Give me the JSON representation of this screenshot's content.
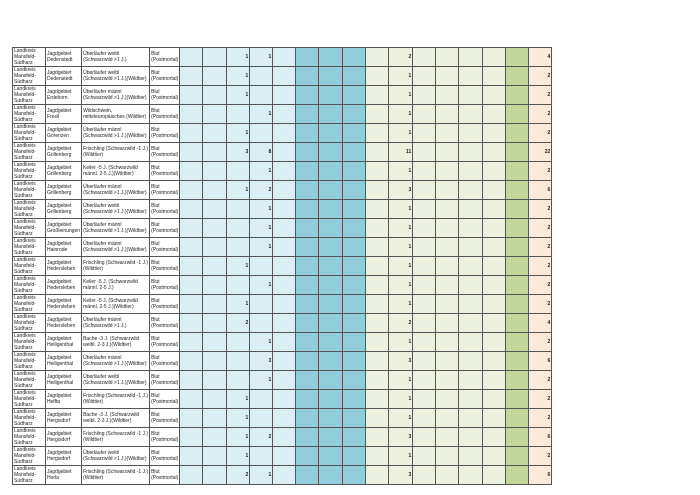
{
  "columns_colors": {
    "light_blue": "#dbeef4",
    "dark_blue": "#92cddc",
    "light_green": "#ebf1de",
    "green": "#c4d79b",
    "peach": "#fde9d9"
  },
  "rows": [
    {
      "district": "Landkreis Mansfeld-Südharz",
      "area": "Jagdgebiet Dedenstedt",
      "species": "Überläufer weibl (Schwarzwild >1 J.)",
      "sample": "Blut (Postmortal)",
      "b3": "1",
      "b4": "1",
      "g2": "2",
      "total": "4"
    },
    {
      "district": "Landkreis Mansfeld-Südharz",
      "area": "Jagdgebiet Dedenstedt",
      "species": "Überläufer weibl (Schwarzwild >1 J.)(Wildtier)",
      "sample": "Blut (Postmortal)",
      "b3": "1",
      "b4": "",
      "g2": "1",
      "total": "2"
    },
    {
      "district": "Landkreis Mansfeld-Südharz",
      "area": "Jagdgebiet Erdeborn",
      "species": "Überläufer männl (Schwarzwild >1 J.)(Wildtier)",
      "sample": "Blut (Postmortal)",
      "b3": "1",
      "b4": "",
      "g2": "1",
      "total": "2"
    },
    {
      "district": "Landkreis Mansfeld-Südharz",
      "area": "Jagdgebiet Fresil",
      "species": "Wildschwein, mitteleuropäisches (Wildtier)",
      "sample": "Blut (Postmortal)",
      "b3": "",
      "b4": "1",
      "g2": "1",
      "total": "2"
    },
    {
      "district": "Landkreis Mansfeld-Südharz",
      "area": "Jagdgebiet Gorenzen",
      "species": "Überläufer männl (Schwarzwild >1 J.)(Wildtier)",
      "sample": "Blut (Postmortal)",
      "b3": "1",
      "b4": "",
      "g2": "1",
      "total": "2"
    },
    {
      "district": "Landkreis Mansfeld-Südharz",
      "area": "Jagdgebiet Grillenberg",
      "species": "Frischling (Schwarzwild -1 J.)(Wildtier)",
      "sample": "Blut (Postmortal)",
      "b3": "3",
      "b4": "8",
      "g2": "11",
      "total": "22"
    },
    {
      "district": "Landkreis Mansfeld-Südharz",
      "area": "Jagdgebiet Grillenberg",
      "species": "Keiler -5 J. (Schwarzwild männl. 2-5 J.)(Wildtier)",
      "sample": "Blut (Postmortal)",
      "b3": "",
      "b4": "1",
      "g2": "1",
      "total": "2"
    },
    {
      "district": "Landkreis Mansfeld-Südharz",
      "area": "Jagdgebiet Grillenberg",
      "species": "Überläufer männl (Schwarzwild >1 J.)(Wildtier)",
      "sample": "Blut (Postmortal)",
      "b3": "1",
      "b4": "2",
      "g2": "3",
      "total": "6"
    },
    {
      "district": "Landkreis Mansfeld-Südharz",
      "area": "Jagdgebiet Grillenberg",
      "species": "Überläufer weibl (Schwarzwild >1 J.)(Wildtier)",
      "sample": "Blut (Postmortal)",
      "b3": "",
      "b4": "1",
      "g2": "1",
      "total": "2"
    },
    {
      "district": "Landkreis Mansfeld-Südharz",
      "area": "Jagdgebiet Großleinungen",
      "species": "Überläufer männl (Schwarzwild >1 J.)(Wildtier)",
      "sample": "Blut (Postmortal)",
      "b3": "",
      "b4": "1",
      "g2": "1",
      "total": "2"
    },
    {
      "district": "Landkreis Mansfeld-Südharz",
      "area": "Jagdgebiet Hainrode",
      "species": "Überläufer männl (Schwarzwild >1 J.)(Wildtier)",
      "sample": "Blut (Postmortal)",
      "b3": "",
      "b4": "1",
      "g2": "1",
      "total": "2"
    },
    {
      "district": "Landkreis Mansfeld-Südharz",
      "area": "Jagdgebiet Hedersleben",
      "species": "Frischling (Schwarzwild -1 J.)(Wildtier)",
      "sample": "Blut (Postmortal)",
      "b3": "1",
      "b4": "",
      "g2": "1",
      "total": "2"
    },
    {
      "district": "Landkreis Mansfeld-Südharz",
      "area": "Jagdgebiet Hedersleben",
      "species": "Keiler -5 J. (Schwarzwild männl. 2-5 J.)",
      "sample": "Blut (Postmortal)",
      "b3": "",
      "b4": "1",
      "g2": "1",
      "total": "2"
    },
    {
      "district": "Landkreis Mansfeld-Südharz",
      "area": "Jagdgebiet Hedersleben",
      "species": "Keiler -5 J. (Schwarzwild männl. 2-5 J.)(Wildtier)",
      "sample": "Blut (Postmortal)",
      "b3": "1",
      "b4": "",
      "g2": "1",
      "total": "2"
    },
    {
      "district": "Landkreis Mansfeld-Südharz",
      "area": "Jagdgebiet Hedersleben",
      "species": "Überläufer männl (Schwarzwild >1 J.)",
      "sample": "Blut (Postmortal)",
      "b3": "2",
      "b4": "",
      "g2": "2",
      "total": "4"
    },
    {
      "district": "Landkreis Mansfeld-Südharz",
      "area": "Jagdgebiet Heiligenthal",
      "species": "Bache -3 J. (Schwarzwild weibl. 2-3 J.)(Wildtier)",
      "sample": "Blut (Postmortal)",
      "b3": "",
      "b4": "1",
      "g2": "1",
      "total": "2"
    },
    {
      "district": "Landkreis Mansfeld-Südharz",
      "area": "Jagdgebiet Heiligenthal",
      "species": "Überläufer männl (Schwarzwild >1 J.)(Wildtier)",
      "sample": "Blut (Postmortal)",
      "b3": "",
      "b4": "3",
      "g2": "3",
      "total": "6"
    },
    {
      "district": "Landkreis Mansfeld-Südharz",
      "area": "Jagdgebiet Heiligenthal",
      "species": "Überläufer weibl (Schwarzwild >1 J.)(Wildtier)",
      "sample": "Blut (Postmortal)",
      "b3": "",
      "b4": "1",
      "g2": "1",
      "total": "2"
    },
    {
      "district": "Landkreis Mansfeld-Südharz",
      "area": "Jagdgebiet Helfta",
      "species": "Frischling (Schwarzwild -1 J.)(Wildtier)",
      "sample": "Blut (Postmortal)",
      "b3": "1",
      "b4": "",
      "g2": "1",
      "total": "2"
    },
    {
      "district": "Landkreis Mansfeld-Südharz",
      "area": "Jagdgebiet Hergisdorf",
      "species": "Bache -3 J. (Schwarzwild weibl. 2-3 J.)(Wildtier)",
      "sample": "Blut (Postmortal)",
      "b3": "1",
      "b4": "",
      "g2": "1",
      "total": "2"
    },
    {
      "district": "Landkreis Mansfeld-Südharz",
      "area": "Jagdgebiet Hergisdorf",
      "species": "Frischling (Schwarzwild -1 J.)(Wildtier)",
      "sample": "Blut (Postmortal)",
      "b3": "1",
      "b4": "2",
      "g2": "3",
      "total": "6"
    },
    {
      "district": "Landkreis Mansfeld-Südharz",
      "area": "Jagdgebiet Hergisdorf",
      "species": "Überläufer weibl (Schwarzwild >1 J.)(Wildtier)",
      "sample": "Blut (Postmortal)",
      "b3": "1",
      "b4": "",
      "g2": "1",
      "total": "2"
    },
    {
      "district": "Landkreis Mansfeld-Südharz",
      "area": "Jagdgebiet Horla",
      "species": "Frischling (Schwarzwild -1 J.)(Wildtier)",
      "sample": "Blut (Postmortal)",
      "b3": "2",
      "b4": "1",
      "g2": "3",
      "total": "6"
    }
  ]
}
